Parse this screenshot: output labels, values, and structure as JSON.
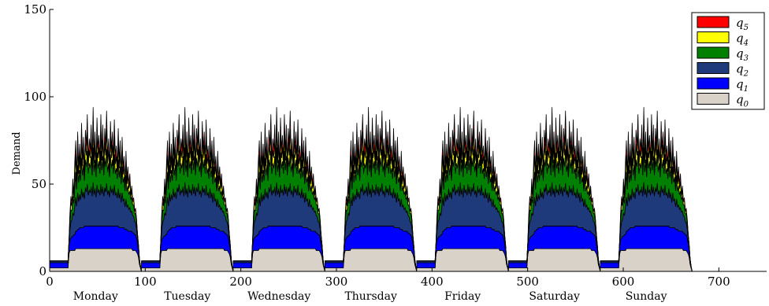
{
  "chart_data": {
    "type": "area",
    "stacked": true,
    "xlabel": "",
    "ylabel": "Demand",
    "xlim": [
      0,
      750
    ],
    "ylim": [
      0,
      150
    ],
    "xticks": [
      0,
      100,
      200,
      300,
      400,
      500,
      600,
      700
    ],
    "yticks": [
      0,
      50,
      100,
      150
    ],
    "grid": false,
    "legend_position": "top-right",
    "day_labels": [
      {
        "label": "Monday",
        "x": 48
      },
      {
        "label": "Tuesday",
        "x": 144
      },
      {
        "label": "Wednesday",
        "x": 240
      },
      {
        "label": "Thursday",
        "x": 336
      },
      {
        "label": "Friday",
        "x": 432
      },
      {
        "label": "Saturday",
        "x": 528
      },
      {
        "label": "Sunday",
        "x": 624
      }
    ],
    "days": [
      {
        "start": 0,
        "end": 96,
        "lead": 4,
        "peak": [
          5,
          12,
          14,
          16,
          22,
          30
        ]
      },
      {
        "start": 96,
        "end": 192,
        "lead": 4,
        "peak": [
          5,
          12,
          14,
          16,
          22,
          30
        ]
      },
      {
        "start": 192,
        "end": 288,
        "lead": 8,
        "peak": [
          5,
          12,
          14,
          16,
          22,
          30
        ]
      },
      {
        "start": 288,
        "end": 384,
        "lead": 8,
        "peak": [
          5,
          12,
          14,
          16,
          22,
          30
        ]
      },
      {
        "start": 384,
        "end": 480,
        "lead": 16,
        "peak": [
          5,
          12,
          14,
          16,
          22,
          30
        ]
      },
      {
        "start": 480,
        "end": 576,
        "lead": 16,
        "peak": [
          5,
          12,
          14,
          16,
          22,
          30
        ]
      },
      {
        "start": 576,
        "end": 672,
        "lead": 16,
        "peak": [
          5,
          12,
          14,
          16,
          22,
          30
        ]
      }
    ],
    "series": [
      {
        "name": "q0",
        "sub": "0",
        "color": "#d8d2c8",
        "values": [
          2,
          2,
          2,
          2,
          2,
          2,
          2,
          2,
          2,
          2,
          2,
          2,
          2,
          2,
          2,
          2,
          2,
          2,
          2,
          2,
          10,
          12,
          12,
          12,
          12,
          12,
          12,
          13,
          13,
          13,
          13,
          13,
          13,
          13,
          13,
          13,
          13,
          13,
          13,
          13,
          13,
          13,
          13,
          13,
          13,
          13,
          13,
          13,
          13,
          13,
          13,
          13,
          13,
          13,
          13,
          13,
          13,
          13,
          13,
          13,
          13,
          13,
          13,
          13,
          13,
          13,
          13,
          13,
          13,
          13,
          13,
          13,
          13,
          13,
          13,
          13,
          13,
          13,
          13,
          13,
          13,
          13,
          13,
          13,
          13,
          13,
          12,
          12,
          12,
          12,
          11,
          10,
          8,
          4,
          2,
          0
        ]
      },
      {
        "name": "q1",
        "sub": "1",
        "color": "#0000ff",
        "values": [
          3,
          3,
          3,
          3,
          3,
          3,
          3,
          3,
          3,
          3,
          3,
          3,
          3,
          3,
          3,
          3,
          3,
          3,
          3,
          3,
          4,
          6,
          7,
          8,
          8,
          9,
          9,
          10,
          10,
          11,
          11,
          12,
          12,
          12,
          12,
          12,
          13,
          13,
          13,
          13,
          13,
          13,
          13,
          13,
          13,
          13,
          13,
          13,
          13,
          13,
          13,
          13,
          13,
          13,
          13,
          13,
          13,
          13,
          13,
          13,
          13,
          13,
          13,
          13,
          13,
          13,
          13,
          13,
          13,
          13,
          13,
          13,
          12,
          12,
          12,
          12,
          12,
          12,
          11,
          11,
          11,
          10,
          10,
          10,
          10,
          10,
          10,
          10,
          9,
          9,
          8,
          6,
          4,
          2,
          1,
          0
        ]
      },
      {
        "name": "q2",
        "sub": "2",
        "color": "#1f3a7a",
        "values": [
          1,
          1,
          1,
          1,
          1,
          1,
          1,
          1,
          1,
          1,
          1,
          1,
          1,
          1,
          1,
          1,
          1,
          1,
          1,
          1,
          2,
          4,
          6,
          8,
          9,
          10,
          11,
          12,
          12,
          13,
          13,
          13,
          14,
          14,
          14,
          14,
          14,
          15,
          15,
          15,
          15,
          15,
          15,
          15,
          15,
          15,
          15,
          15,
          15,
          15,
          15,
          15,
          15,
          15,
          15,
          15,
          15,
          15,
          15,
          15,
          15,
          15,
          15,
          15,
          15,
          15,
          15,
          15,
          14,
          14,
          14,
          14,
          14,
          14,
          13,
          13,
          13,
          12,
          12,
          12,
          11,
          11,
          11,
          10,
          10,
          9,
          9,
          8,
          7,
          6,
          5,
          3,
          2,
          1,
          0,
          0
        ]
      },
      {
        "name": "q3",
        "sub": "3",
        "color": "#008000",
        "values": [
          0,
          0,
          0,
          0,
          0,
          0,
          0,
          0,
          0,
          0,
          0,
          0,
          0,
          0,
          0,
          0,
          0,
          0,
          0,
          0,
          1,
          2,
          3,
          4,
          5,
          6,
          6,
          7,
          7,
          8,
          8,
          8,
          9,
          9,
          9,
          9,
          9,
          9,
          10,
          10,
          10,
          10,
          10,
          10,
          10,
          10,
          10,
          10,
          10,
          10,
          10,
          10,
          10,
          10,
          10,
          10,
          10,
          10,
          10,
          10,
          10,
          10,
          10,
          10,
          10,
          10,
          10,
          9,
          9,
          9,
          9,
          9,
          9,
          9,
          9,
          8,
          8,
          8,
          8,
          8,
          7,
          7,
          7,
          6,
          6,
          6,
          5,
          5,
          4,
          4,
          3,
          2,
          1,
          0,
          0,
          0
        ]
      },
      {
        "name": "q4",
        "sub": "4",
        "color": "#ffff00",
        "values": [
          0,
          0,
          0,
          0,
          0,
          0,
          0,
          0,
          0,
          0,
          0,
          0,
          0,
          0,
          0,
          0,
          0,
          0,
          0,
          0,
          0,
          1,
          1,
          1,
          1,
          2,
          2,
          2,
          2,
          2,
          2,
          2,
          2,
          2,
          2,
          2,
          2,
          2,
          2,
          2,
          2,
          2,
          2,
          2,
          2,
          2,
          2,
          2,
          2,
          2,
          2,
          2,
          2,
          2,
          2,
          2,
          2,
          2,
          2,
          2,
          2,
          2,
          2,
          2,
          2,
          2,
          2,
          2,
          2,
          2,
          2,
          2,
          2,
          2,
          2,
          2,
          2,
          2,
          2,
          2,
          2,
          2,
          2,
          2,
          1,
          1,
          1,
          1,
          1,
          1,
          1,
          0,
          0,
          0,
          0,
          0
        ]
      },
      {
        "name": "q5",
        "sub": "5",
        "color": "#ff0000",
        "values": [
          0,
          0,
          0,
          0,
          0,
          0,
          0,
          0,
          0,
          0,
          0,
          0,
          0,
          0,
          0,
          0,
          0,
          0,
          0,
          0,
          0,
          0,
          0,
          0,
          0,
          1,
          1,
          1,
          1,
          1,
          1,
          1,
          1,
          1,
          1,
          1,
          1,
          1,
          1,
          1,
          1,
          1,
          1,
          1,
          1,
          1,
          1,
          1,
          1,
          1,
          1,
          1,
          1,
          1,
          1,
          1,
          1,
          1,
          1,
          1,
          1,
          1,
          1,
          1,
          1,
          1,
          1,
          1,
          1,
          1,
          1,
          1,
          1,
          1,
          1,
          1,
          1,
          1,
          1,
          1,
          1,
          1,
          1,
          1,
          0,
          0,
          0,
          0,
          0,
          0,
          0,
          0,
          0,
          0,
          0,
          0
        ]
      }
    ],
    "spike_pattern": [
      0,
      0,
      0,
      0,
      0,
      0,
      0,
      0,
      0,
      0,
      0,
      0,
      0,
      0,
      0,
      0,
      0,
      0,
      0,
      0,
      0,
      8,
      14,
      6,
      18,
      4,
      22,
      30,
      10,
      32,
      12,
      24,
      8,
      34,
      14,
      26,
      6,
      28,
      18,
      36,
      10,
      22,
      16,
      30,
      8,
      40,
      12,
      26,
      6,
      34,
      16,
      24,
      10,
      36,
      14,
      30,
      8,
      28,
      18,
      38,
      12,
      22,
      6,
      32,
      16,
      26,
      10,
      34,
      14,
      20,
      8,
      30,
      12,
      24,
      6,
      28,
      10,
      18,
      4,
      22,
      8,
      16,
      6,
      14,
      4,
      10,
      4,
      6,
      2,
      4,
      2,
      0,
      0,
      0,
      0,
      0
    ]
  }
}
